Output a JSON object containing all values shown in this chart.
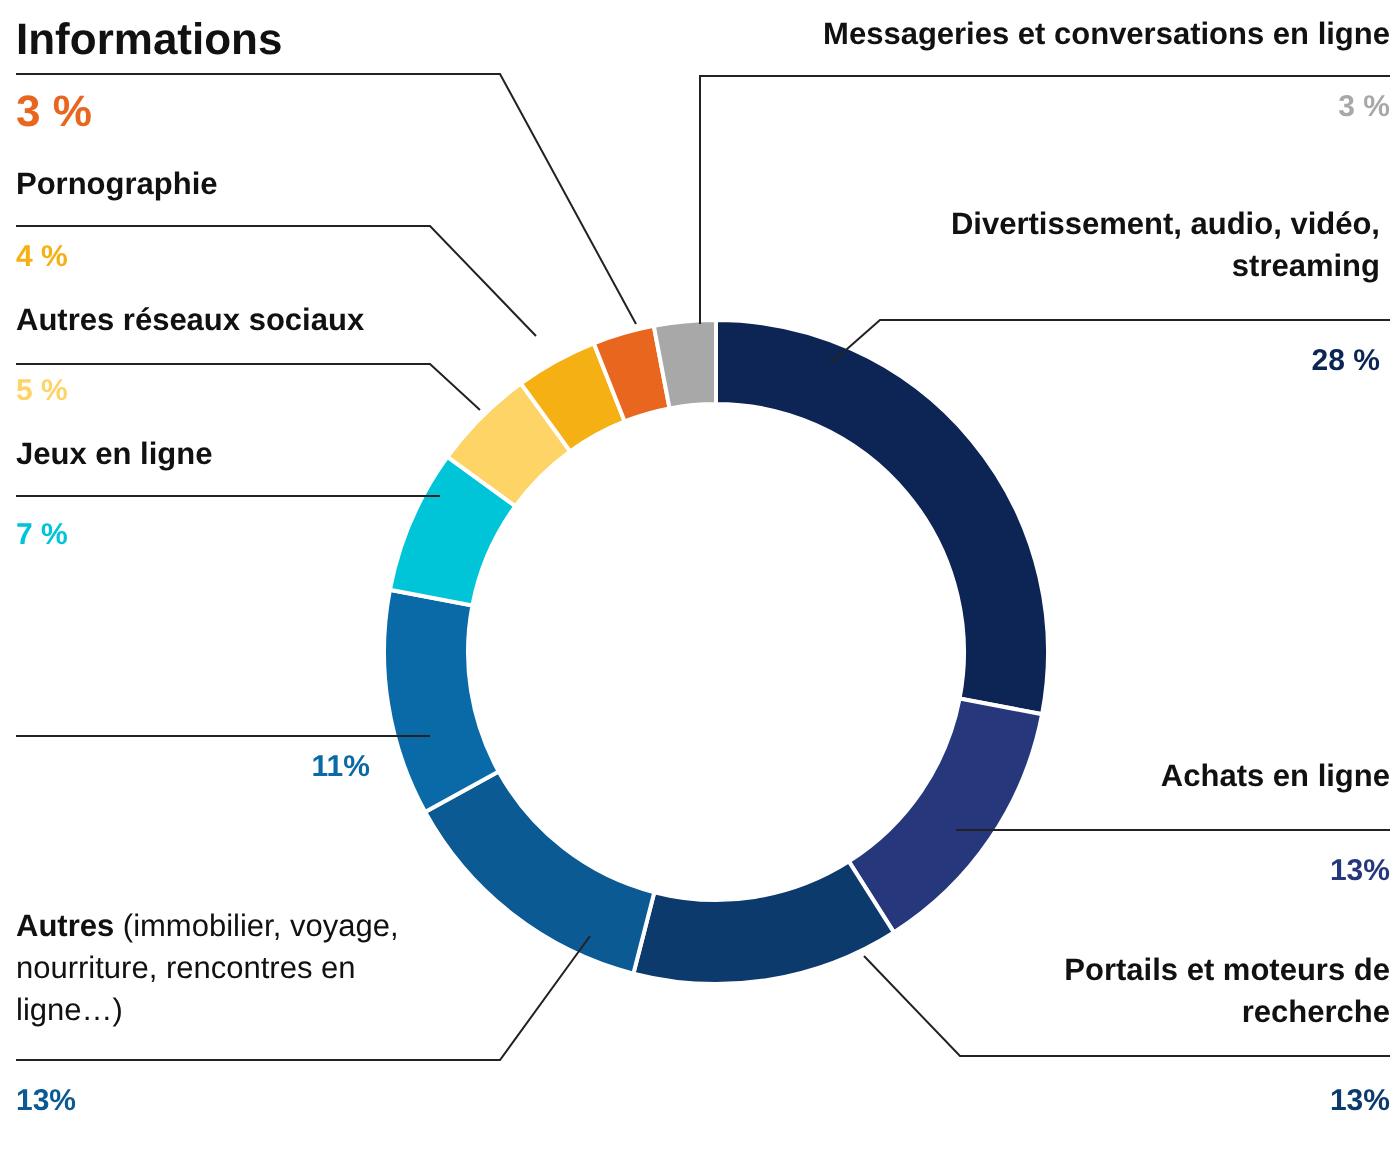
{
  "chart_data": {
    "type": "donut",
    "categories": [
      "Divertissement, audio, vidéo, streaming",
      "Achats en ligne",
      "Portails et moteurs de recherche",
      "Autres (immobilier, voyage, nourriture, rencontres en ligne…)",
      null,
      "Jeux en ligne",
      "Autres réseaux sociaux",
      "Pornographie",
      "Informations",
      "Messageries et conversations en ligne"
    ],
    "values": [
      28,
      13,
      13,
      13,
      11,
      7,
      5,
      4,
      3,
      3
    ],
    "colors": [
      "#0d2555",
      "#27377c",
      "#0c3a6d",
      "#0b5a94",
      "#0a6aa8",
      "#00c4d8",
      "#ffd466",
      "#f5b014",
      "#e8661e",
      "#a8a8a8"
    ],
    "value_labels": [
      "28 %",
      "13%",
      "13%",
      "13%",
      "11%",
      "7 %",
      "5 %",
      "4 %",
      "3 %",
      "3 %"
    ]
  }
}
